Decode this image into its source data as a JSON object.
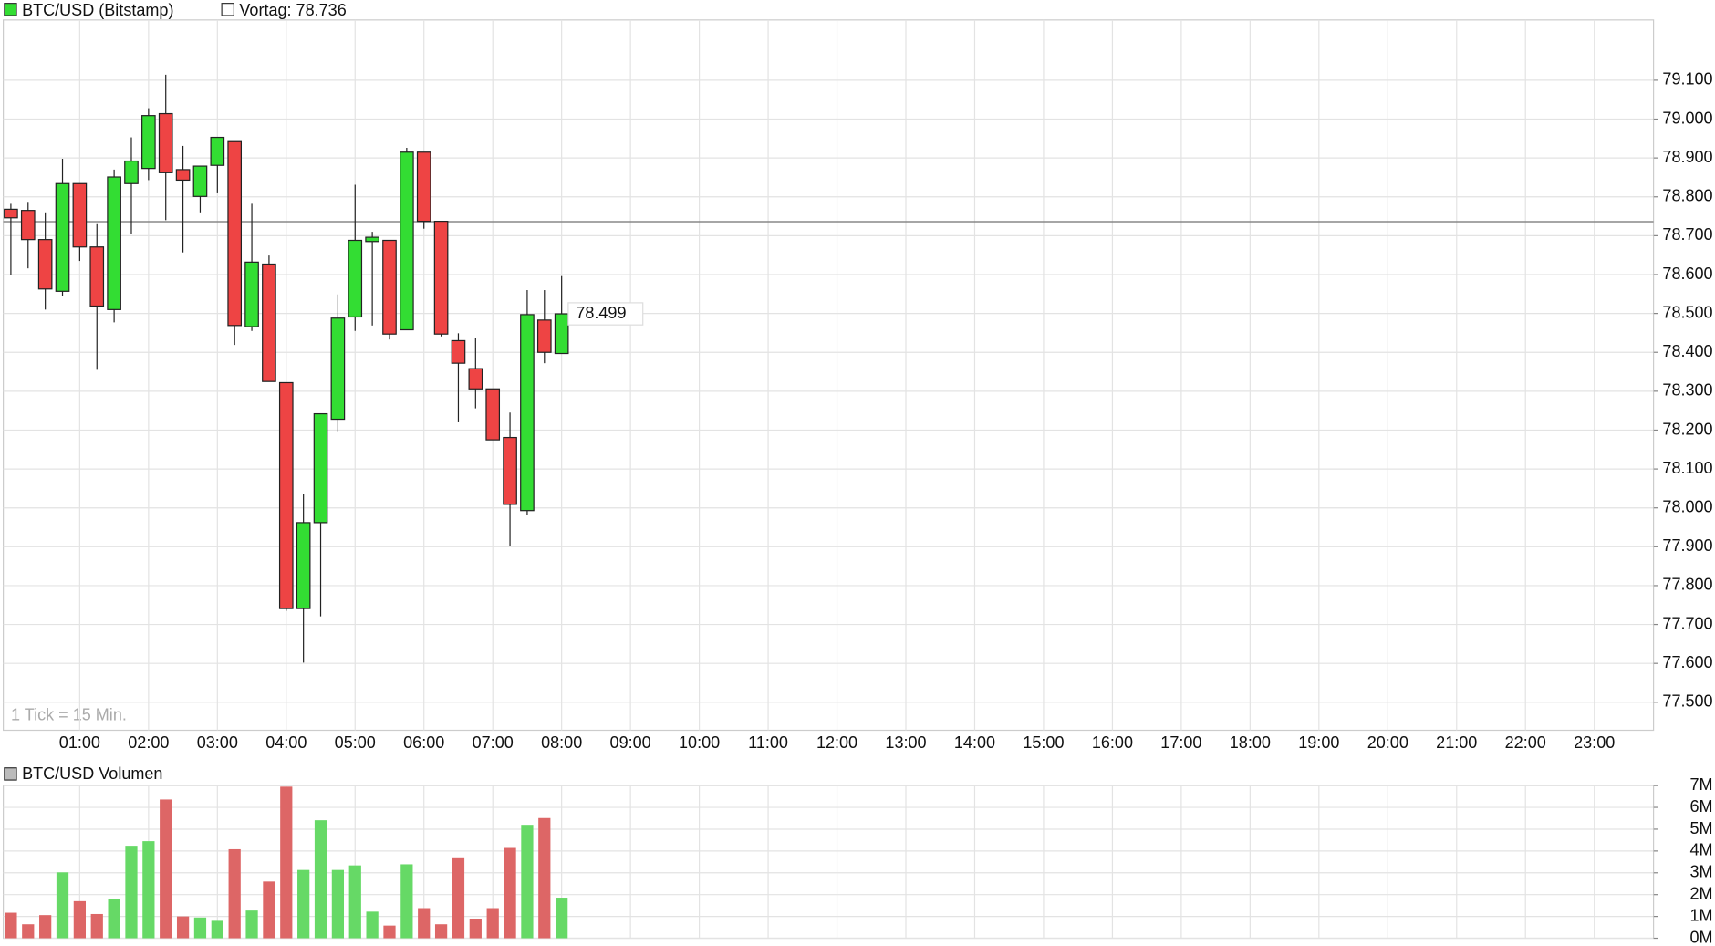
{
  "chart_data": [
    {
      "type": "candlestick",
      "title": "BTC/USD (Bitstamp)",
      "reference": {
        "label": "Vortag: 78.736",
        "value": 78736
      },
      "note": "1 Tick = 15 Min.",
      "last_price": {
        "value": 78499,
        "label": "78.499"
      },
      "up_color": "#33dd33",
      "down_color": "#ee4444",
      "grid": true,
      "x": [
        0,
        0.25,
        0.5,
        0.75,
        1,
        1.25,
        1.5,
        1.75,
        2,
        2.25,
        2.5,
        2.75,
        3,
        3.25,
        3.5,
        3.75,
        4,
        4.25,
        4.5,
        4.75,
        5,
        5.25,
        5.5,
        5.75,
        6,
        6.25,
        6.5,
        6.75,
        7,
        7.25,
        7.5,
        7.75,
        8
      ],
      "open": [
        78768,
        78765,
        78690,
        78557,
        78834,
        78671,
        78510,
        78834,
        78873,
        79014,
        78870,
        78801,
        78881,
        78942,
        78466,
        78627,
        78322,
        77741,
        77962,
        78228,
        78491,
        78685,
        78688,
        78458,
        78915,
        78737,
        78430,
        78358,
        78306,
        78181,
        77993,
        78483,
        78397
      ],
      "high": [
        78782,
        78787,
        78760,
        78898,
        78834,
        78732,
        78870,
        78953,
        79028,
        79114,
        78931,
        78879,
        78953,
        78942,
        78782,
        78649,
        78322,
        78037,
        78242,
        78549,
        78831,
        78710,
        78688,
        78926,
        78915,
        78737,
        78449,
        78436,
        78306,
        78245,
        78560,
        78560,
        78596
      ],
      "low": [
        78599,
        78616,
        78510,
        78544,
        78635,
        78355,
        78477,
        78704,
        78843,
        78740,
        78657,
        78760,
        78809,
        78419,
        78455,
        78325,
        77735,
        77602,
        77721,
        78195,
        78455,
        78469,
        78433,
        78458,
        78718,
        78441,
        78220,
        78256,
        78175,
        77901,
        77982,
        78372,
        78397
      ],
      "close": [
        78746,
        78690,
        78563,
        78834,
        78671,
        78519,
        78851,
        78892,
        79009,
        78862,
        78843,
        78879,
        78953,
        78469,
        78632,
        78325,
        77741,
        77962,
        78242,
        78488,
        78688,
        78696,
        78447,
        78915,
        78737,
        78447,
        78372,
        78306,
        78175,
        78009,
        78497,
        78400,
        78499
      ],
      "xlim": [
        -0.11,
        23.86
      ],
      "xticks": [
        {
          "value": 1,
          "label": "01:00"
        },
        {
          "value": 2,
          "label": "02:00"
        },
        {
          "value": 3,
          "label": "03:00"
        },
        {
          "value": 4,
          "label": "04:00"
        },
        {
          "value": 5,
          "label": "05:00"
        },
        {
          "value": 6,
          "label": "06:00"
        },
        {
          "value": 7,
          "label": "07:00"
        },
        {
          "value": 8,
          "label": "08:00"
        },
        {
          "value": 9,
          "label": "09:00"
        },
        {
          "value": 10,
          "label": "10:00"
        },
        {
          "value": 11,
          "label": "11:00"
        },
        {
          "value": 12,
          "label": "12:00"
        },
        {
          "value": 13,
          "label": "13:00"
        },
        {
          "value": 14,
          "label": "14:00"
        },
        {
          "value": 15,
          "label": "15:00"
        },
        {
          "value": 16,
          "label": "16:00"
        },
        {
          "value": 17,
          "label": "17:00"
        },
        {
          "value": 18,
          "label": "18:00"
        },
        {
          "value": 19,
          "label": "19:00"
        },
        {
          "value": 20,
          "label": "20:00"
        },
        {
          "value": 21,
          "label": "21:00"
        },
        {
          "value": 22,
          "label": "22:00"
        },
        {
          "value": 23,
          "label": "23:00"
        }
      ],
      "ylim": [
        77428,
        79255
      ],
      "yticks": [
        {
          "value": 77500,
          "label": "77.500"
        },
        {
          "value": 77600,
          "label": "77.600"
        },
        {
          "value": 77700,
          "label": "77.700"
        },
        {
          "value": 77800,
          "label": "77.800"
        },
        {
          "value": 77900,
          "label": "77.900"
        },
        {
          "value": 78000,
          "label": "78.000"
        },
        {
          "value": 78100,
          "label": "78.100"
        },
        {
          "value": 78200,
          "label": "78.200"
        },
        {
          "value": 78300,
          "label": "78.300"
        },
        {
          "value": 78400,
          "label": "78.400"
        },
        {
          "value": 78500,
          "label": "78.500"
        },
        {
          "value": 78600,
          "label": "78.600"
        },
        {
          "value": 78700,
          "label": "78.700"
        },
        {
          "value": 78800,
          "label": "78.800"
        },
        {
          "value": 78900,
          "label": "78.900"
        },
        {
          "value": 79000,
          "label": "79.000"
        },
        {
          "value": 79100,
          "label": "79.100"
        }
      ]
    },
    {
      "type": "bar",
      "title": "BTC/USD Volumen",
      "up_color": "#66d966",
      "down_color": "#dd6666",
      "grid": true,
      "x": [
        0,
        0.25,
        0.5,
        0.75,
        1,
        1.25,
        1.5,
        1.75,
        2,
        2.25,
        2.5,
        2.75,
        3,
        3.25,
        3.5,
        3.75,
        4,
        4.25,
        4.5,
        4.75,
        5,
        5.25,
        5.5,
        5.75,
        6,
        6.25,
        6.5,
        6.75,
        7,
        7.25,
        7.5,
        7.75,
        8
      ],
      "values": [
        1170000,
        640000,
        1060000,
        3020000,
        1700000,
        1110000,
        1800000,
        4240000,
        4450000,
        6360000,
        1000000,
        950000,
        800000,
        4080000,
        1270000,
        2600000,
        6950000,
        3130000,
        5410000,
        3130000,
        3340000,
        1220000,
        580000,
        3390000,
        1380000,
        640000,
        3710000,
        900000,
        1380000,
        4140000,
        5200000,
        5510000,
        1860000
      ],
      "xlim": [
        -0.11,
        23.86
      ],
      "ylim": [
        0,
        7000000
      ],
      "yticks": [
        {
          "value": 0,
          "label": "0M"
        },
        {
          "value": 1000000,
          "label": "1M"
        },
        {
          "value": 2000000,
          "label": "2M"
        },
        {
          "value": 3000000,
          "label": "3M"
        },
        {
          "value": 4000000,
          "label": "4M"
        },
        {
          "value": 5000000,
          "label": "5M"
        },
        {
          "value": 6000000,
          "label": "6M"
        },
        {
          "value": 7000000,
          "label": "7M"
        }
      ]
    }
  ]
}
